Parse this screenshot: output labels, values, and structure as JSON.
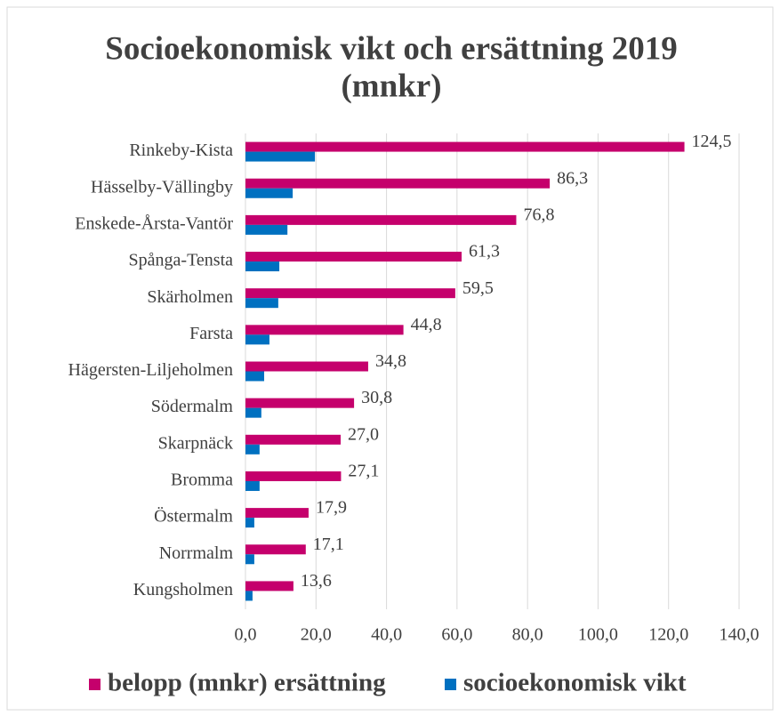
{
  "chart_data": {
    "type": "barh",
    "title": "Socioekonomisk vikt och ersättning 2019",
    "subtitle": "(mnkr)",
    "categories": [
      "Rinkeby-Kista",
      "Hässelby-Vällingby",
      "Enskede-Årsta-Vantör",
      "Spånga-Tensta",
      "Skärholmen",
      "Farsta",
      "Hägersten-Liljeholmen",
      "Södermalm",
      "Skarpnäck",
      "Bromma",
      "Östermalm",
      "Norrmalm",
      "Kungsholmen"
    ],
    "series": [
      {
        "name": "belopp (mnkr) ersättning",
        "color": "#c5006c",
        "values": [
          124.5,
          86.3,
          76.8,
          61.3,
          59.5,
          44.8,
          34.8,
          30.8,
          27.0,
          27.1,
          17.9,
          17.1,
          13.6
        ],
        "value_labels": [
          "124,5",
          "86,3",
          "76,8",
          "61,3",
          "59,5",
          "44,8",
          "34,8",
          "30,8",
          "27,0",
          "27,1",
          "17,9",
          "17,1",
          "13,6"
        ]
      },
      {
        "name": "socioekonomisk vikt",
        "color": "#0070c0",
        "values": [
          19.7,
          13.4,
          11.9,
          9.6,
          9.3,
          6.8,
          5.3,
          4.5,
          4.0,
          4.0,
          2.5,
          2.5,
          2.0
        ]
      }
    ],
    "xlim": [
      0,
      140
    ],
    "xticks": [
      {
        "value": 0,
        "label": "0,0"
      },
      {
        "value": 20,
        "label": "20,0"
      },
      {
        "value": 40,
        "label": "40,0"
      },
      {
        "value": 60,
        "label": "60,0"
      },
      {
        "value": 80,
        "label": "80,0"
      },
      {
        "value": 100,
        "label": "100,0"
      },
      {
        "value": 120,
        "label": "120,0"
      },
      {
        "value": 140,
        "label": "140,0"
      }
    ],
    "grid": true,
    "legend": "bottom"
  }
}
